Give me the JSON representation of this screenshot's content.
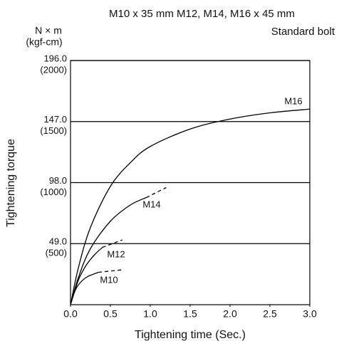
{
  "chart_data": {
    "type": "line",
    "title": "M10 x 35 mm M12, M14, M16 x 45 mm",
    "subtitle": "Standard bolt",
    "y_unit": "N × m",
    "y2_unit": "(kgf-cm)",
    "ylabel": "Tightening torque",
    "xlabel": "Tightening time (Sec.)",
    "xlim": [
      0,
      3
    ],
    "xticks": [
      {
        "value": 0,
        "label": "0.0"
      },
      {
        "value": 0.5,
        "label": "0.5"
      },
      {
        "value": 1,
        "label": "1.0"
      },
      {
        "value": 1.5,
        "label": "1.5"
      },
      {
        "value": 2,
        "label": "2.0"
      },
      {
        "value": 2.5,
        "label": "2.5"
      },
      {
        "value": 3,
        "label": "3.0"
      }
    ],
    "ylim": [
      0,
      196
    ],
    "yticks": [
      {
        "value": 49,
        "label": "49.0"
      },
      {
        "value": 98,
        "label": "98.0"
      },
      {
        "value": 147,
        "label": "147.0"
      },
      {
        "value": 196,
        "label": "196.0"
      }
    ],
    "y2lim": [
      0,
      2000
    ],
    "y2ticks": [
      {
        "value": 500,
        "label": "(500)"
      },
      {
        "value": 1000,
        "label": "(1000)"
      },
      {
        "value": 1500,
        "label": "(1500)"
      },
      {
        "value": 2000,
        "label": "(2000)"
      }
    ],
    "grid": true,
    "color": "#000000",
    "series": [
      {
        "name": "M16",
        "color": "#000000",
        "x": [
          0,
          0.1,
          0.25,
          0.5,
          0.75,
          1,
          1.5,
          2,
          2.5,
          3
        ],
        "values": [
          0,
          30,
          62,
          95,
          114,
          127,
          141,
          149,
          154,
          157
        ]
      },
      {
        "name": "M14",
        "color": "#000000",
        "x": [
          0,
          0.1,
          0.25,
          0.5,
          0.75,
          0.95
        ],
        "values": [
          0,
          22,
          45,
          67,
          80,
          86
        ],
        "x_dashed": [
          0.95,
          1.2
        ],
        "values_dashed": [
          86,
          94
        ]
      },
      {
        "name": "M12",
        "color": "#000000",
        "x": [
          0,
          0.1,
          0.2,
          0.3,
          0.4
        ],
        "values": [
          0,
          20,
          32,
          40,
          46
        ],
        "x_dashed": [
          0.4,
          0.65
        ],
        "values_dashed": [
          46,
          52
        ]
      },
      {
        "name": "M10",
        "color": "#000000",
        "x": [
          0,
          0.05,
          0.1,
          0.2,
          0.35
        ],
        "values": [
          0,
          10,
          16,
          22,
          26
        ],
        "x_dashed": [
          0.35,
          0.65
        ],
        "values_dashed": [
          26,
          28
        ]
      }
    ]
  }
}
